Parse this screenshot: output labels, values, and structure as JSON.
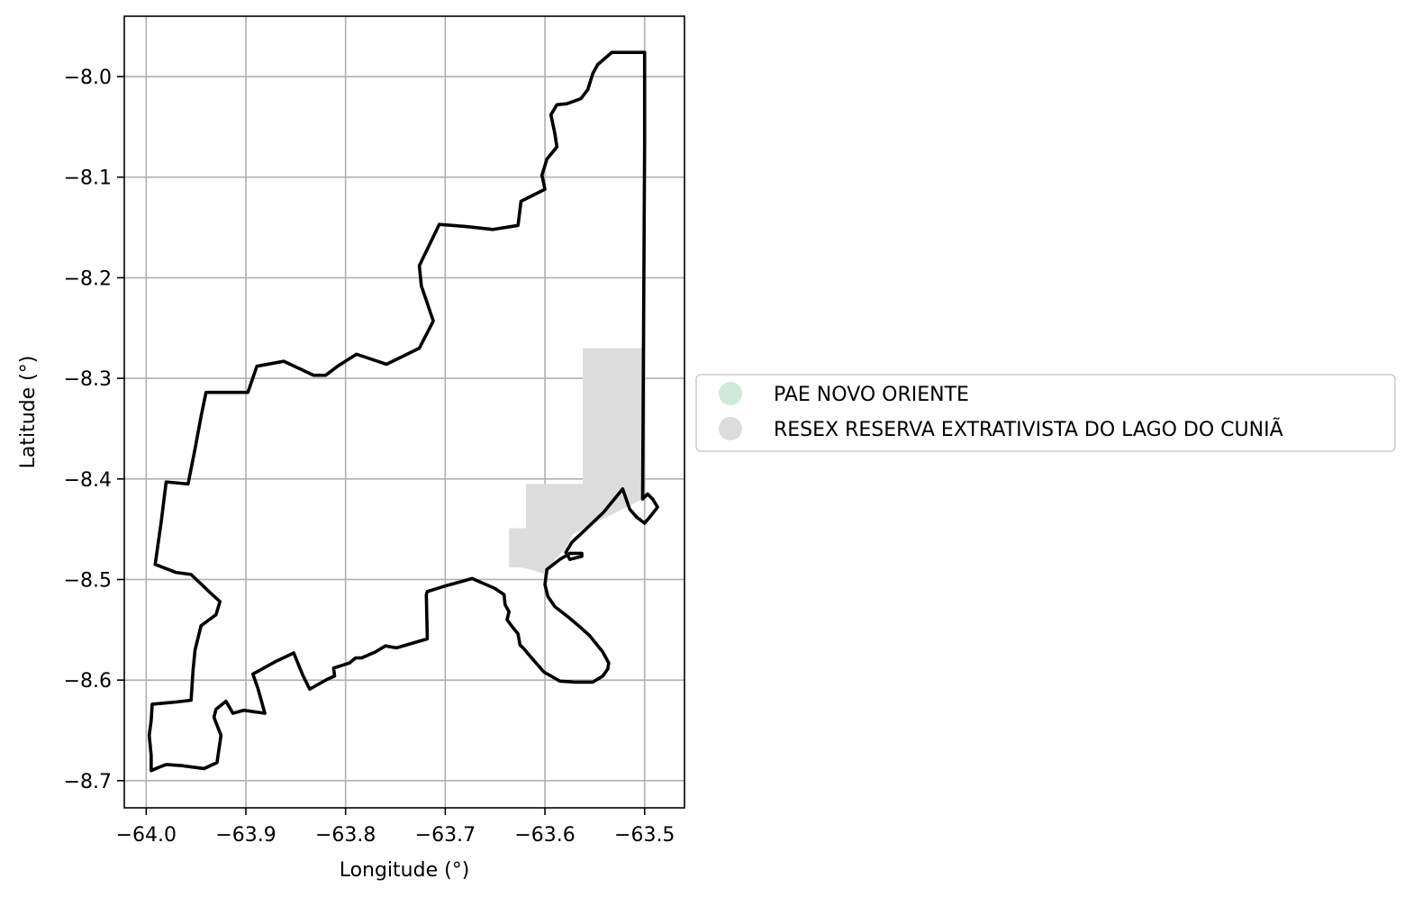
{
  "chart_data": {
    "type": "map",
    "xlabel": "Longitude (°)",
    "ylabel": "Latitude (°)",
    "xlim": [
      -64.022,
      -63.46
    ],
    "ylim": [
      -8.727,
      -7.94
    ],
    "xticks": [
      -64.0,
      -63.9,
      -63.8,
      -63.7,
      -63.6,
      -63.5
    ],
    "xtick_labels": [
      "−64.0",
      "−63.9",
      "−63.8",
      "−63.7",
      "−63.6",
      "−63.5"
    ],
    "yticks": [
      -8.0,
      -8.1,
      -8.2,
      -8.3,
      -8.4,
      -8.5,
      -8.6,
      -8.7
    ],
    "ytick_labels": [
      "−8.0",
      "−8.1",
      "−8.2",
      "−8.3",
      "−8.4",
      "−8.5",
      "−8.6",
      "−8.7"
    ],
    "grid": true,
    "legend_position": "right of plot, vertically centered",
    "legend": [
      {
        "label": "PAE NOVO ORIENTE",
        "color": "#cdeadb"
      },
      {
        "label": "RESEX RESERVA EXTRATIVISTA DO LAGO DO CUNIÃ",
        "color": "#dcdcdc"
      }
    ],
    "shaded_area": {
      "color": "#dcdcdc",
      "coordinates": [
        [
          -63.562,
          -8.27
        ],
        [
          -63.502,
          -8.27
        ],
        [
          -63.502,
          -8.42
        ],
        [
          -63.562,
          -8.45
        ],
        [
          -63.572,
          -8.455
        ],
        [
          -63.58,
          -8.47
        ],
        [
          -63.59,
          -8.48
        ],
        [
          -63.598,
          -8.495
        ],
        [
          -63.615,
          -8.49
        ],
        [
          -63.625,
          -8.488
        ],
        [
          -63.636,
          -8.488
        ],
        [
          -63.636,
          -8.449
        ],
        [
          -63.619,
          -8.449
        ],
        [
          -63.619,
          -8.405
        ],
        [
          -63.562,
          -8.405
        ]
      ]
    },
    "outline": {
      "color": "#000000",
      "coordinates": [
        [
          -63.5,
          -7.976
        ],
        [
          -63.533,
          -7.976
        ],
        [
          -63.547,
          -7.988
        ],
        [
          -63.552,
          -7.997
        ],
        [
          -63.557,
          -8.013
        ],
        [
          -63.564,
          -8.022
        ],
        [
          -63.578,
          -8.027
        ],
        [
          -63.588,
          -8.028
        ],
        [
          -63.594,
          -8.038
        ],
        [
          -63.59,
          -8.057
        ],
        [
          -63.588,
          -8.07
        ],
        [
          -63.598,
          -8.082
        ],
        [
          -63.603,
          -8.098
        ],
        [
          -63.6,
          -8.112
        ],
        [
          -63.624,
          -8.124
        ],
        [
          -63.627,
          -8.148
        ],
        [
          -63.652,
          -8.152
        ],
        [
          -63.68,
          -8.149
        ],
        [
          -63.706,
          -8.147
        ],
        [
          -63.726,
          -8.188
        ],
        [
          -63.724,
          -8.208
        ],
        [
          -63.712,
          -8.243
        ],
        [
          -63.726,
          -8.27
        ],
        [
          -63.759,
          -8.286
        ],
        [
          -63.789,
          -8.276
        ],
        [
          -63.808,
          -8.288
        ],
        [
          -63.82,
          -8.297
        ],
        [
          -63.832,
          -8.297
        ],
        [
          -63.862,
          -8.283
        ],
        [
          -63.889,
          -8.288
        ],
        [
          -63.898,
          -8.314
        ],
        [
          -63.94,
          -8.314
        ],
        [
          -63.945,
          -8.338
        ],
        [
          -63.951,
          -8.37
        ],
        [
          -63.958,
          -8.405
        ],
        [
          -63.98,
          -8.403
        ],
        [
          -63.985,
          -8.443
        ],
        [
          -63.991,
          -8.485
        ],
        [
          -63.97,
          -8.493
        ],
        [
          -63.955,
          -8.495
        ],
        [
          -63.937,
          -8.512
        ],
        [
          -63.926,
          -8.522
        ],
        [
          -63.93,
          -8.535
        ],
        [
          -63.945,
          -8.546
        ],
        [
          -63.951,
          -8.57
        ],
        [
          -63.953,
          -8.59
        ],
        [
          -63.955,
          -8.62
        ],
        [
          -63.972,
          -8.622
        ],
        [
          -63.994,
          -8.624
        ],
        [
          -63.995,
          -8.64
        ],
        [
          -63.997,
          -8.655
        ],
        [
          -63.995,
          -8.675
        ],
        [
          -63.995,
          -8.69
        ],
        [
          -63.988,
          -8.687
        ],
        [
          -63.98,
          -8.684
        ],
        [
          -63.965,
          -8.685
        ],
        [
          -63.942,
          -8.688
        ],
        [
          -63.929,
          -8.682
        ],
        [
          -63.925,
          -8.655
        ],
        [
          -63.932,
          -8.637
        ],
        [
          -63.93,
          -8.629
        ],
        [
          -63.92,
          -8.621
        ],
        [
          -63.913,
          -8.633
        ],
        [
          -63.902,
          -8.63
        ],
        [
          -63.881,
          -8.633
        ],
        [
          -63.888,
          -8.608
        ],
        [
          -63.893,
          -8.594
        ],
        [
          -63.871,
          -8.582
        ],
        [
          -63.852,
          -8.573
        ],
        [
          -63.843,
          -8.595
        ],
        [
          -63.836,
          -8.609
        ],
        [
          -63.818,
          -8.599
        ],
        [
          -63.811,
          -8.596
        ],
        [
          -63.812,
          -8.588
        ],
        [
          -63.796,
          -8.583
        ],
        [
          -63.79,
          -8.578
        ],
        [
          -63.784,
          -8.578
        ],
        [
          -63.77,
          -8.572
        ],
        [
          -63.76,
          -8.566
        ],
        [
          -63.749,
          -8.568
        ],
        [
          -63.718,
          -8.559
        ],
        [
          -63.719,
          -8.515
        ],
        [
          -63.718,
          -8.512
        ],
        [
          -63.702,
          -8.507
        ],
        [
          -63.673,
          -8.499
        ],
        [
          -63.65,
          -8.509
        ],
        [
          -63.641,
          -8.515
        ],
        [
          -63.64,
          -8.525
        ],
        [
          -63.636,
          -8.532
        ],
        [
          -63.638,
          -8.54
        ],
        [
          -63.632,
          -8.548
        ],
        [
          -63.627,
          -8.554
        ],
        [
          -63.625,
          -8.565
        ],
        [
          -63.62,
          -8.57
        ],
        [
          -63.616,
          -8.575
        ],
        [
          -63.601,
          -8.592
        ],
        [
          -63.585,
          -8.601
        ],
        [
          -63.57,
          -8.602
        ],
        [
          -63.552,
          -8.602
        ],
        [
          -63.542,
          -8.596
        ],
        [
          -63.537,
          -8.589
        ],
        [
          -63.536,
          -8.583
        ],
        [
          -63.542,
          -8.572
        ],
        [
          -63.555,
          -8.556
        ],
        [
          -63.565,
          -8.547
        ],
        [
          -63.577,
          -8.537
        ],
        [
          -63.59,
          -8.527
        ],
        [
          -63.597,
          -8.517
        ],
        [
          -63.6,
          -8.505
        ],
        [
          -63.598,
          -8.49
        ],
        [
          -63.585,
          -8.48
        ],
        [
          -63.575,
          -8.474
        ],
        [
          -63.563,
          -8.474
        ],
        [
          -63.563,
          -8.477
        ],
        [
          -63.575,
          -8.48
        ],
        [
          -63.579,
          -8.473
        ],
        [
          -63.573,
          -8.463
        ],
        [
          -63.561,
          -8.452
        ],
        [
          -63.541,
          -8.433
        ],
        [
          -63.522,
          -8.41
        ],
        [
          -63.515,
          -8.43
        ],
        [
          -63.508,
          -8.438
        ],
        [
          -63.5,
          -8.444
        ],
        [
          -63.494,
          -8.437
        ],
        [
          -63.487,
          -8.428
        ],
        [
          -63.492,
          -8.42
        ],
        [
          -63.497,
          -8.415
        ],
        [
          -63.502,
          -8.42
        ],
        [
          -63.5,
          -8.068
        ],
        [
          -63.5,
          -7.976
        ]
      ]
    }
  }
}
